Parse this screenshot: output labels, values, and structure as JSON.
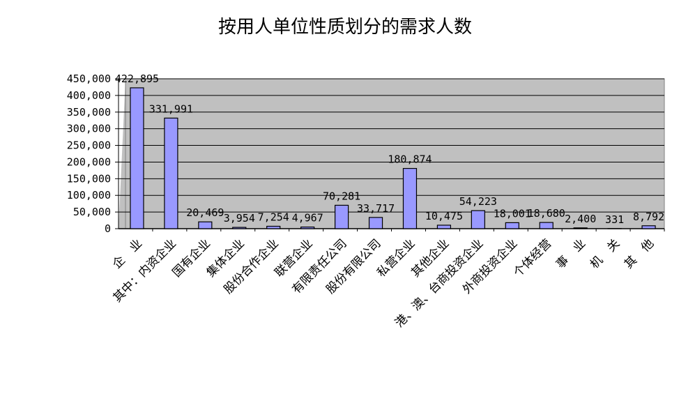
{
  "chart_data": {
    "type": "bar",
    "title": "按用人单位性质划分的需求人数",
    "categories": [
      "企　业",
      "其中：内资企业",
      "国有企业",
      "集体企业",
      "股份合作企业",
      "联营企业",
      "有限责任公司",
      "股份有限公司",
      "私营企业",
      "其他企业",
      "港、澳、台商投资企业",
      "外商投资企业",
      "个体经营",
      "事　业",
      "机　关",
      "其　他"
    ],
    "values": [
      422895,
      331991,
      20469,
      3954,
      7254,
      4967,
      70281,
      33717,
      180874,
      10475,
      54223,
      18001,
      18680,
      2400,
      331,
      8792
    ],
    "data_labels": [
      "422,895",
      "331,991",
      "20,469",
      "3,954",
      "7,254",
      "4,967",
      "70,281",
      "33,717",
      "180,874",
      "10,475",
      "54,223",
      "18,001",
      "18,680",
      "2,400",
      "331",
      "8,792"
    ],
    "y_ticks": [
      "0",
      "50,000",
      "100,000",
      "150,000",
      "200,000",
      "250,000",
      "300,000",
      "350,000",
      "400,000",
      "450,000"
    ],
    "ylim": [
      0,
      450000
    ],
    "grid": true,
    "legend": "none",
    "colors": {
      "bar": "#9999ff",
      "bar_edge": "#000000",
      "plot_bg": "#c0c0c0",
      "grid": "#000000"
    }
  }
}
